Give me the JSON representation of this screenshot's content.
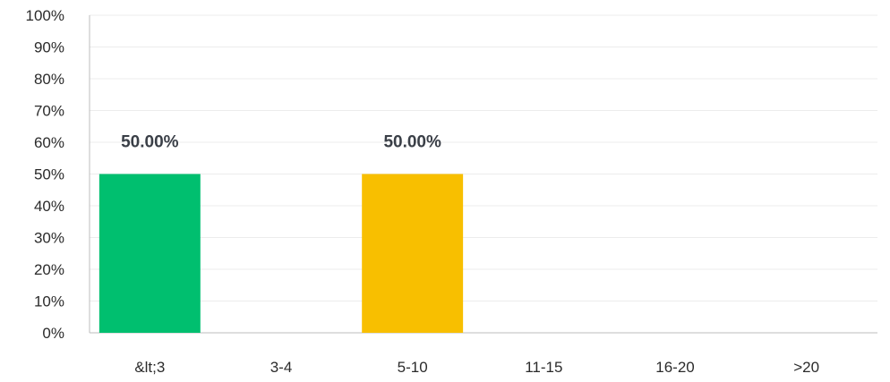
{
  "chart_data": {
    "type": "bar",
    "title": "",
    "xlabel": "",
    "ylabel": "",
    "categories": [
      "&lt;3",
      "3-4",
      "5-10",
      "11-15",
      "16-20",
      ">20"
    ],
    "values": [
      50,
      0,
      50,
      0,
      0,
      0
    ],
    "data_labels": [
      "50.00%",
      "",
      "50.00%",
      "",
      "",
      ""
    ],
    "bar_colors": [
      "#00bf6f",
      "#00bf6f",
      "#f8bf00",
      "#f8bf00",
      "#f8bf00",
      "#f8bf00"
    ],
    "ylim": [
      0,
      100
    ],
    "yticks": [
      0,
      10,
      20,
      30,
      40,
      50,
      60,
      70,
      80,
      90,
      100
    ],
    "ytick_labels": [
      "0%",
      "10%",
      "20%",
      "30%",
      "40%",
      "50%",
      "60%",
      "70%",
      "80%",
      "90%",
      "100%"
    ],
    "grid": true,
    "grid_color": "#ececec",
    "axis_color": "#bdbdbd"
  }
}
